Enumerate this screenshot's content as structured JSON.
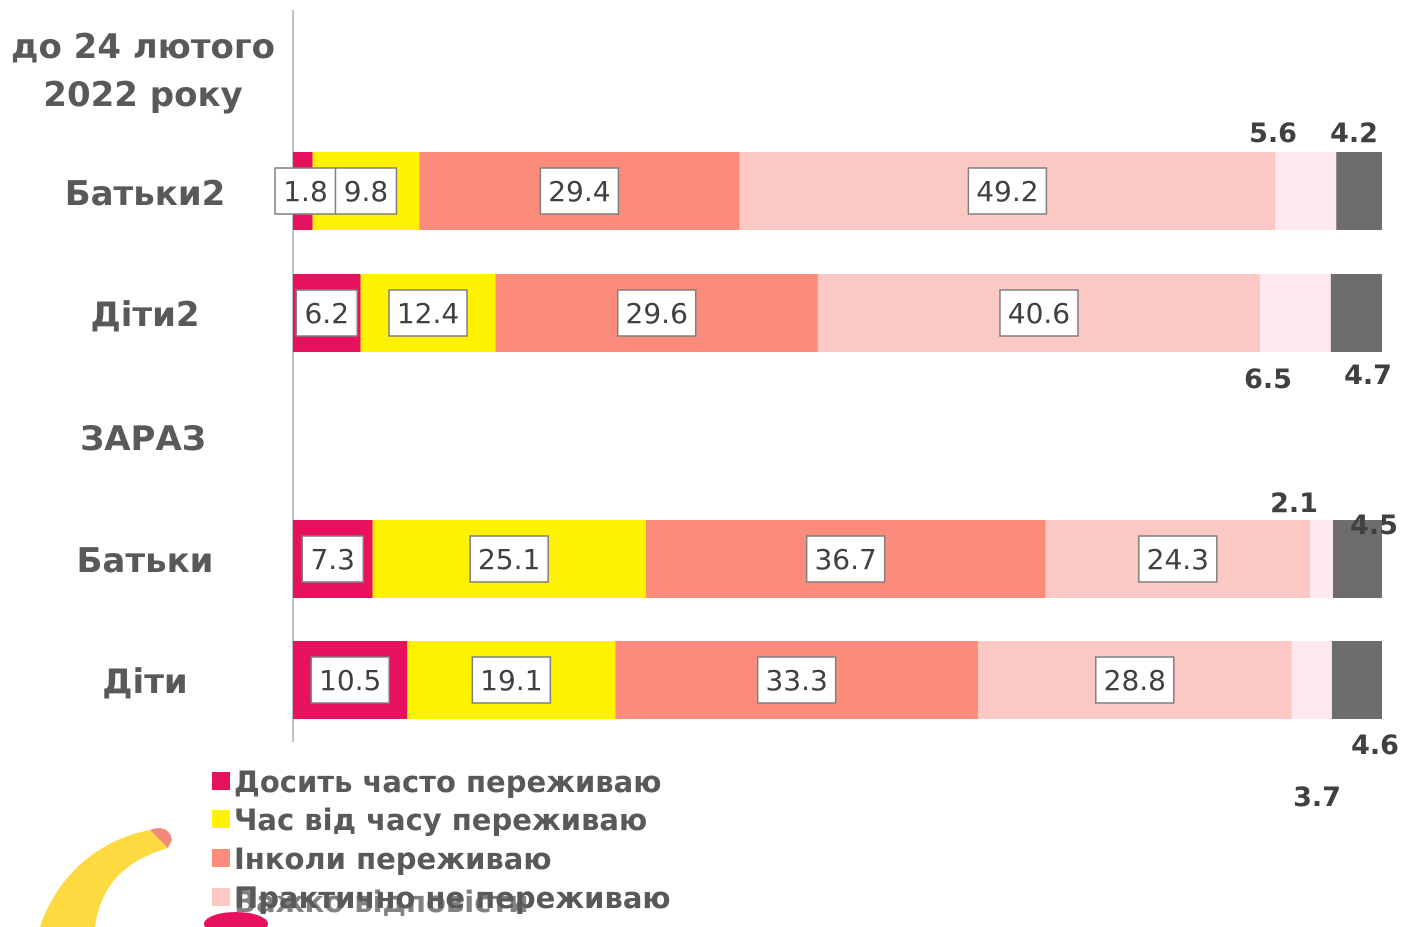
{
  "chart_data": {
    "type": "bar",
    "orientation": "horizontal",
    "stacked": true,
    "grid": false,
    "legend_position": "bottom-left",
    "headers": [
      "до 24 лютого",
      "2022 року",
      "ЗАРАЗ"
    ],
    "categories": [
      "Батьки2",
      "Діти2",
      "Батьки",
      "Діти"
    ],
    "series": [
      {
        "name": "Досить часто переживаю",
        "color": "#e8115d",
        "values": [
          1.8,
          6.2,
          7.3,
          10.5
        ]
      },
      {
        "name": "Час від часу  переживаю",
        "color": "#fef200",
        "values": [
          9.8,
          12.4,
          25.1,
          19.1
        ]
      },
      {
        "name": "Інколи переживаю",
        "color": "#fb8b7b",
        "values": [
          29.4,
          29.6,
          36.7,
          33.3
        ]
      },
      {
        "name": "Практично не переживаю",
        "color": "#fcc8c3",
        "values": [
          49.2,
          40.6,
          24.3,
          28.8
        ]
      },
      {
        "name": "Важко відповісти",
        "color": "#fde8f0",
        "values": [
          5.6,
          6.5,
          2.1,
          3.7
        ]
      },
      {
        "name": "",
        "color": "#6f6c6c",
        "values": [
          4.2,
          4.7,
          4.5,
          4.6
        ]
      }
    ],
    "xlim": [
      0,
      100
    ],
    "legend_overlap_text": "Важко відповісти"
  }
}
